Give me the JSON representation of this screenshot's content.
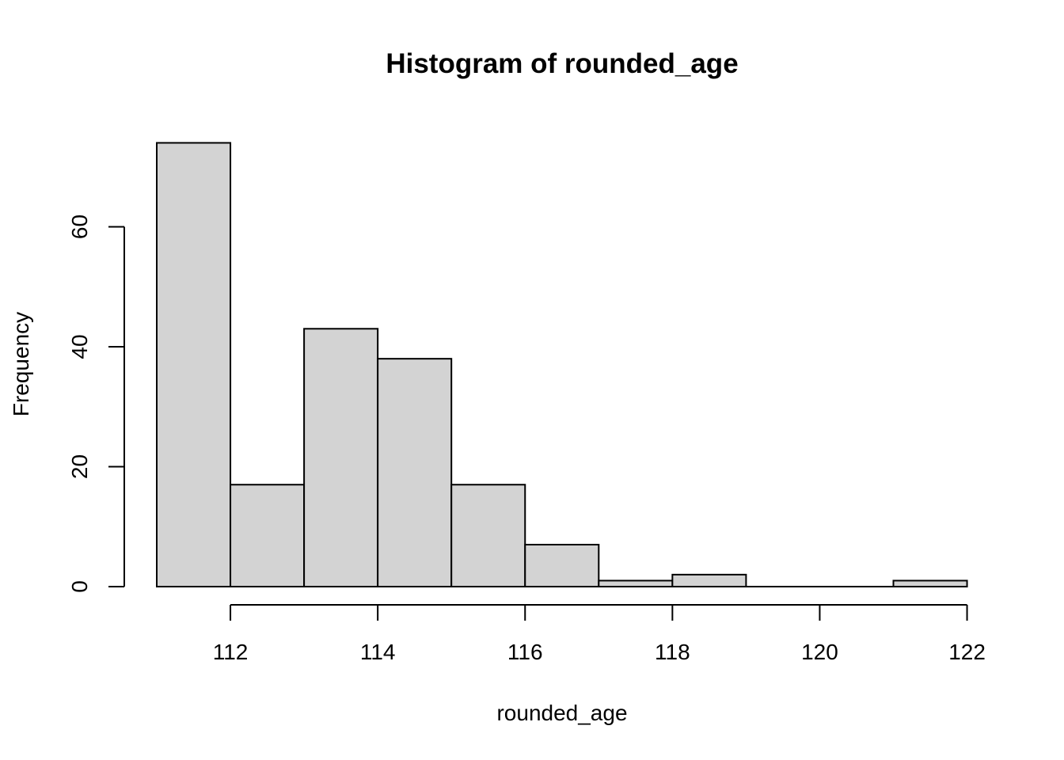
{
  "chart_data": {
    "type": "bar",
    "title": "Histogram of rounded_age",
    "xlabel": "rounded_age",
    "ylabel": "Frequency",
    "bin_edges": [
      111,
      112,
      113,
      114,
      115,
      116,
      117,
      118,
      119,
      120,
      121,
      122
    ],
    "values": [
      74,
      17,
      43,
      38,
      17,
      7,
      1,
      2,
      0,
      0,
      1
    ],
    "x_ticks": [
      112,
      114,
      116,
      118,
      120,
      122
    ],
    "y_ticks": [
      0,
      20,
      40,
      60
    ],
    "xlim": [
      111,
      122
    ],
    "ylim": [
      0,
      74
    ],
    "colors": {
      "bar_fill": "#d3d3d3",
      "bar_stroke": "#000000"
    }
  }
}
